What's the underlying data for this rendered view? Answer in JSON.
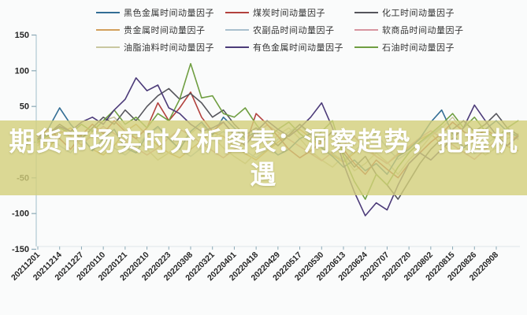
{
  "banner": {
    "line1": "期货市场实时分析图表：洞察趋势，把握机",
    "line2": "遇",
    "full_text": "期货市场实时分析图表：洞察趋势，把握机遇",
    "bg_color": "rgba(211,207,122,0.8)",
    "text_color": "#ffffff"
  },
  "axis": {
    "spine_color": "#b6cdd6",
    "tick_color": "#8aa8b5",
    "label_color": "#262626"
  },
  "chart_data": {
    "type": "line",
    "title": "",
    "xlabel": "",
    "ylabel": "",
    "ylim": [
      -150,
      150
    ],
    "y_ticks": [
      150,
      100,
      50,
      0,
      -50,
      -100,
      -150
    ],
    "grid": false,
    "legend_position": "top",
    "points_per_tick_interval": 2,
    "x_tick_labels": [
      "20211201",
      "20211214",
      "20211227",
      "20220110",
      "20220121",
      "20220210",
      "20220223",
      "20220308",
      "20220321",
      "20220401",
      "20220418",
      "20220429",
      "20220517",
      "20220530",
      "20220613",
      "20220624",
      "20220707",
      "20220720",
      "20220802",
      "20220815",
      "20220826",
      "20220908"
    ],
    "legend_columns": [
      [
        0,
        1,
        2
      ],
      [
        3,
        4,
        5
      ],
      [
        6,
        7,
        8
      ]
    ],
    "draw_order": [
      1,
      2,
      4,
      7,
      0,
      3,
      6,
      8,
      5
    ],
    "series": [
      {
        "name": "黑色金属时间动量因子",
        "color": "#336e95",
        "values": [
          5,
          20,
          48,
          25,
          8,
          -12,
          5,
          18,
          -8,
          -15,
          10,
          22,
          5,
          -10,
          15,
          28,
          10,
          35,
          20,
          5,
          15,
          -5,
          -18,
          -10,
          5,
          12,
          -8,
          -20,
          -35,
          -25,
          -40,
          -30,
          -45,
          -20,
          -10,
          5,
          28,
          45,
          12,
          -8,
          5,
          18,
          30,
          15,
          8
        ]
      },
      {
        "name": "贵金属时间动量因子",
        "color": "#d2a05c",
        "values": [
          2,
          -8,
          12,
          20,
          5,
          -10,
          -18,
          -5,
          15,
          25,
          10,
          -5,
          -15,
          -22,
          -10,
          2,
          14,
          8,
          -6,
          -16,
          -25,
          -12,
          0,
          10,
          18,
          6,
          -8,
          -18,
          -28,
          -15,
          -5,
          -20,
          -30,
          -18,
          -8,
          4,
          12,
          -4,
          -14,
          -6,
          8,
          16,
          4,
          -6,
          -12
        ]
      },
      {
        "name": "油脂油料时间动量因子",
        "color": "#c9c7a0",
        "values": [
          -5,
          8,
          22,
          10,
          -5,
          15,
          30,
          35,
          18,
          5,
          -10,
          -25,
          -15,
          0,
          12,
          25,
          8,
          -8,
          -20,
          -30,
          -15,
          -5,
          10,
          20,
          5,
          -12,
          -25,
          -35,
          -20,
          -40,
          -30,
          -15,
          -28,
          -45,
          -25,
          -10,
          8,
          20,
          35,
          15,
          -5,
          -18,
          -8,
          5,
          12
        ]
      },
      {
        "name": "煤炭时间动量因子",
        "color": "#b2423e",
        "values": [
          8,
          18,
          5,
          -10,
          10,
          25,
          12,
          30,
          15,
          5,
          20,
          55,
          30,
          48,
          70,
          35,
          15,
          28,
          10,
          -5,
          40,
          25,
          8,
          -10,
          -22,
          -12,
          0,
          15,
          -10,
          -30,
          -45,
          -25,
          -38,
          -50,
          -30,
          -15,
          0,
          12,
          28,
          15,
          5,
          18,
          8,
          -5,
          10
        ]
      },
      {
        "name": "农副品时间动量因子",
        "color": "#a9c0ce",
        "values": [
          0,
          10,
          -5,
          -15,
          5,
          18,
          8,
          -8,
          -18,
          -6,
          10,
          20,
          6,
          -10,
          -20,
          -8,
          5,
          15,
          2,
          -12,
          -22,
          -10,
          4,
          14,
          24,
          10,
          -6,
          -16,
          -26,
          -12,
          0,
          12,
          -8,
          -24,
          -14,
          -2,
          10,
          22,
          8,
          -6,
          -16,
          -4,
          8,
          18,
          6
        ]
      },
      {
        "name": "有色金属时间动量因子",
        "color": "#4c3b79",
        "values": [
          5,
          12,
          22,
          15,
          28,
          35,
          25,
          45,
          60,
          90,
          72,
          80,
          48,
          40,
          25,
          15,
          20,
          28,
          10,
          -5,
          15,
          30,
          18,
          8,
          20,
          35,
          55,
          20,
          -30,
          -70,
          -103,
          -85,
          -95,
          -60,
          -30,
          -15,
          -25,
          -10,
          5,
          20,
          52,
          30,
          10,
          -5,
          8
        ]
      },
      {
        "name": "化工时间动量因子",
        "color": "#55555c",
        "values": [
          3,
          12,
          25,
          15,
          5,
          20,
          35,
          25,
          45,
          30,
          50,
          65,
          75,
          60,
          68,
          55,
          35,
          45,
          25,
          10,
          20,
          8,
          -5,
          10,
          25,
          12,
          0,
          15,
          -15,
          -35,
          -20,
          -45,
          -60,
          -80,
          -55,
          -30,
          -10,
          5,
          18,
          30,
          15,
          25,
          40,
          20,
          10
        ]
      },
      {
        "name": "软商品时间动量因子",
        "color": "#d795a0",
        "values": [
          -2,
          6,
          16,
          8,
          -4,
          10,
          22,
          12,
          2,
          -8,
          -18,
          -8,
          6,
          18,
          10,
          -2,
          -12,
          -22,
          -10,
          2,
          12,
          24,
          14,
          4,
          -6,
          -16,
          -26,
          -14,
          -4,
          8,
          -10,
          -20,
          -30,
          -16,
          -6,
          6,
          16,
          6,
          -4,
          -14,
          -24,
          -10,
          2,
          12,
          4
        ]
      },
      {
        "name": "石油时间动量因子",
        "color": "#6f9e41",
        "values": [
          0,
          10,
          20,
          12,
          25,
          15,
          30,
          45,
          25,
          35,
          20,
          40,
          30,
          60,
          110,
          62,
          65,
          40,
          35,
          48,
          25,
          5,
          18,
          28,
          12,
          0,
          15,
          30,
          -20,
          -55,
          -80,
          -45,
          -60,
          -35,
          -15,
          0,
          12,
          25,
          40,
          20,
          35,
          15,
          5,
          20,
          30
        ]
      }
    ]
  }
}
